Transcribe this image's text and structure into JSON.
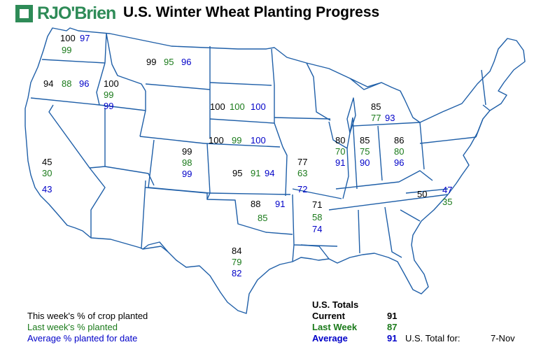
{
  "header": {
    "logo_text": "RJO'Brien",
    "title": "U.S. Winter Wheat Planting Progress"
  },
  "colors": {
    "current": "#000000",
    "last_week": "#1a7a1a",
    "average": "#0000c8",
    "state_lines": "#1f5fa8",
    "logo": "#2e8b57"
  },
  "states": {
    "WA": {
      "current": "100",
      "last_week": "99",
      "average": "97"
    },
    "OR": {
      "current": "94",
      "last_week": "88",
      "average": "96"
    },
    "ID": {
      "current": "100",
      "last_week": "99",
      "average": "99"
    },
    "MT": {
      "current": "99",
      "last_week": "95",
      "average": "96"
    },
    "CA": {
      "current": "45",
      "last_week": "30",
      "average": "43"
    },
    "SD": {
      "current": "100",
      "last_week": "100",
      "average": "100"
    },
    "NE": {
      "current": "100",
      "last_week": "99",
      "average": "100"
    },
    "CO": {
      "current": "99",
      "last_week": "98",
      "average": "99"
    },
    "KS": {
      "current": "95",
      "last_week": "91",
      "average": "94"
    },
    "OK": {
      "current": "88",
      "last_week": "85",
      "average": "91"
    },
    "TX": {
      "current": "84",
      "last_week": "79",
      "average": "82"
    },
    "MO": {
      "current": "77",
      "last_week": "63",
      "average": "72"
    },
    "AR": {
      "current": "71",
      "last_week": "58",
      "average": "74"
    },
    "IL": {
      "current": "80",
      "last_week": "70",
      "average": "91"
    },
    "IN": {
      "current": "85",
      "last_week": "75",
      "average": "90"
    },
    "OH": {
      "current": "86",
      "last_week": "80",
      "average": "96"
    },
    "MI": {
      "current": "85",
      "last_week": "77",
      "average": "93"
    },
    "NC": {
      "current": "50",
      "last_week": "35",
      "average": "47"
    }
  },
  "legend": {
    "current": "This week's % of crop planted",
    "last_week": "Last week's % planted",
    "average": "Average % planted for date"
  },
  "totals": {
    "heading": "U.S. Totals",
    "current_label": "Current",
    "current_value": "91",
    "last_week_label": "Last Week",
    "last_week_value": "87",
    "average_label": "Average",
    "average_value": "91",
    "total_for_label": "U.S. Total for:",
    "date": "7-Nov"
  }
}
